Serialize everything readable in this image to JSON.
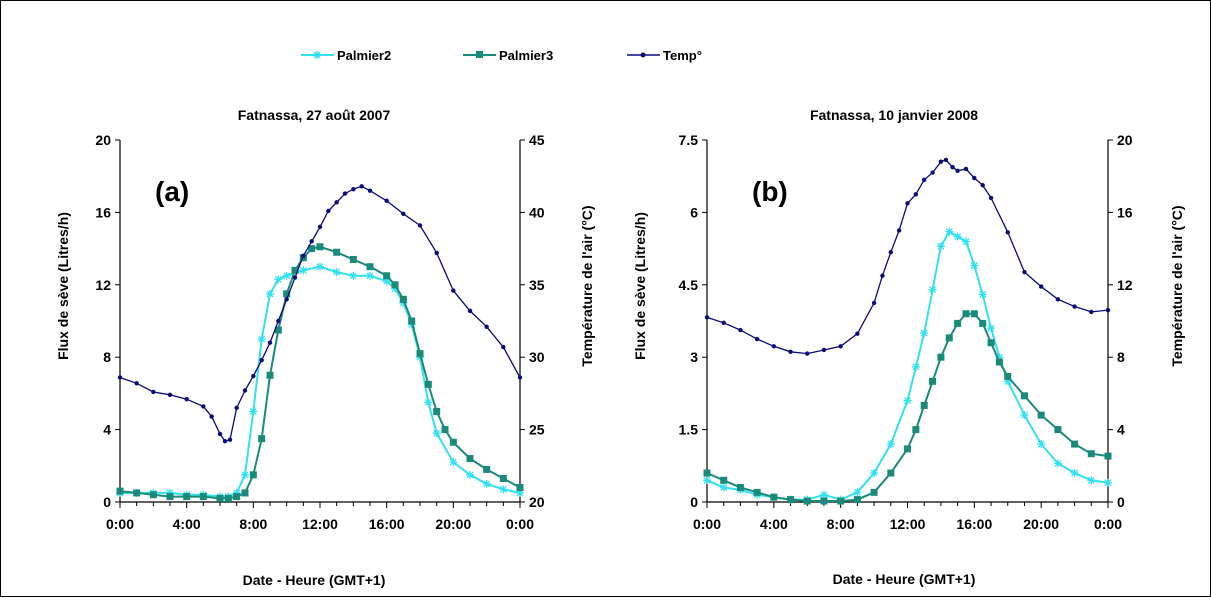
{
  "legend": {
    "items": [
      {
        "label": "Palmier2",
        "color": "#33e0f0",
        "marker": "asterisk"
      },
      {
        "label": "Palmier3",
        "color": "#1a8a7a",
        "marker": "square"
      },
      {
        "label": "Temp°",
        "color": "#0a0a7a",
        "marker": "dot"
      }
    ]
  },
  "chart_data": [
    {
      "type": "line",
      "title": "Fatnassa, 27 août 2007",
      "panel_label": "(a)",
      "xlabel": "Date - Heure (GMT+1)",
      "ylabel": "Flux de sève (Litres/h)",
      "y2label": "Température de l'air (°C)",
      "x_ticks": [
        "0:00",
        "4:00",
        "8:00",
        "12:00",
        "16:00",
        "20:00",
        "0:00"
      ],
      "x_tick_hours": [
        0,
        4,
        8,
        12,
        16,
        20,
        24
      ],
      "xlim": [
        0,
        24
      ],
      "ylim": [
        0,
        20
      ],
      "y_ticks": [
        0,
        4,
        8,
        12,
        16,
        20
      ],
      "y2lim": [
        20,
        45
      ],
      "y2_ticks": [
        20,
        25,
        30,
        35,
        40,
        45
      ],
      "grid": false,
      "legend_position": "top",
      "series": [
        {
          "name": "Palmier2",
          "axis": "left",
          "x": [
            0,
            1,
            2,
            3,
            4,
            5,
            6,
            6.5,
            7,
            7.5,
            8,
            8.5,
            9,
            9.5,
            10,
            11,
            12,
            13,
            14,
            15,
            16,
            16.5,
            17,
            17.5,
            18,
            18.5,
            19,
            20,
            21,
            22,
            23,
            24
          ],
          "y": [
            0.5,
            0.5,
            0.5,
            0.5,
            0.4,
            0.4,
            0.3,
            0.3,
            0.5,
            1.5,
            5,
            9,
            11.5,
            12.3,
            12.5,
            12.8,
            13,
            12.7,
            12.5,
            12.5,
            12.2,
            11.8,
            11,
            9.8,
            8,
            5.5,
            3.8,
            2.2,
            1.5,
            1,
            0.7,
            0.5
          ]
        },
        {
          "name": "Palmier3",
          "axis": "left",
          "x": [
            0,
            1,
            2,
            3,
            4,
            5,
            6,
            6.5,
            7,
            7.5,
            8,
            8.5,
            9,
            9.5,
            10,
            10.5,
            11,
            11.5,
            12,
            13,
            14,
            15,
            16,
            16.5,
            17,
            17.5,
            18,
            18.5,
            19,
            19.5,
            20,
            21,
            22,
            23,
            24
          ],
          "y": [
            0.6,
            0.5,
            0.4,
            0.3,
            0.3,
            0.3,
            0.2,
            0.2,
            0.3,
            0.5,
            1.5,
            3.5,
            7,
            9.5,
            11.5,
            12.8,
            13.5,
            14,
            14.1,
            13.8,
            13.4,
            13,
            12.5,
            12,
            11.2,
            10,
            8.2,
            6.5,
            5,
            4,
            3.3,
            2.4,
            1.8,
            1.3,
            0.8
          ]
        },
        {
          "name": "Temp°",
          "axis": "right",
          "x": [
            0,
            1,
            2,
            3,
            4,
            5,
            5.5,
            6,
            6.3,
            6.6,
            7,
            7.5,
            8,
            8.5,
            9,
            9.5,
            10,
            10.5,
            11,
            11.5,
            12,
            12.5,
            13,
            13.5,
            14,
            14.5,
            15,
            16,
            17,
            18,
            19,
            20,
            21,
            22,
            23,
            24
          ],
          "y": [
            28.6,
            28.2,
            27.6,
            27.4,
            27.1,
            26.6,
            25.9,
            24.7,
            24.2,
            24.3,
            26.5,
            27.7,
            28.7,
            29.8,
            31,
            32.5,
            34,
            35.5,
            37,
            38,
            39,
            40.1,
            40.7,
            41.3,
            41.6,
            41.8,
            41.5,
            40.8,
            39.9,
            39.1,
            37.2,
            34.6,
            33.2,
            32.1,
            30.7,
            28.6
          ]
        }
      ]
    },
    {
      "type": "line",
      "title": "Fatnassa, 10 janvier 2008",
      "panel_label": "(b)",
      "xlabel": "Date - Heure (GMT+1)",
      "ylabel": "Flux de sève (Litres/h)",
      "y2label": "Température de l'air (°C)",
      "x_ticks": [
        "0:00",
        "4:00",
        "8:00",
        "12:00",
        "16:00",
        "20:00",
        "0:00"
      ],
      "x_tick_hours": [
        0,
        4,
        8,
        12,
        16,
        20,
        24
      ],
      "xlim": [
        0,
        24
      ],
      "ylim": [
        0,
        7.5
      ],
      "y_ticks": [
        0,
        1.5,
        3,
        4.5,
        6,
        7.5
      ],
      "y2lim": [
        0,
        20
      ],
      "y2_ticks": [
        0,
        4,
        8,
        12,
        16,
        20
      ],
      "grid": false,
      "legend_position": "top",
      "series": [
        {
          "name": "Palmier2",
          "axis": "left",
          "x": [
            0,
            1,
            2,
            3,
            4,
            5,
            6,
            7,
            8,
            9,
            10,
            11,
            12,
            12.5,
            13,
            13.5,
            14,
            14.5,
            15,
            15.5,
            16,
            16.5,
            17,
            17.5,
            18,
            19,
            20,
            21,
            22,
            23,
            24
          ],
          "y": [
            0.45,
            0.3,
            0.25,
            0.15,
            0.1,
            0.05,
            0.05,
            0.15,
            0.05,
            0.2,
            0.6,
            1.2,
            2.1,
            2.8,
            3.5,
            4.4,
            5.3,
            5.6,
            5.5,
            5.4,
            4.9,
            4.3,
            3.6,
            3,
            2.5,
            1.8,
            1.2,
            0.8,
            0.6,
            0.45,
            0.4
          ]
        },
        {
          "name": "Palmier3",
          "axis": "left",
          "x": [
            0,
            1,
            2,
            3,
            4,
            5,
            6,
            7,
            8,
            9,
            10,
            11,
            12,
            12.5,
            13,
            13.5,
            14,
            14.5,
            15,
            15.5,
            16,
            16.5,
            17,
            17.5,
            18,
            19,
            20,
            21,
            22,
            23,
            24
          ],
          "y": [
            0.6,
            0.45,
            0.3,
            0.2,
            0.1,
            0.05,
            0.02,
            0.02,
            0.02,
            0.05,
            0.2,
            0.6,
            1.1,
            1.5,
            2,
            2.5,
            3,
            3.4,
            3.7,
            3.9,
            3.9,
            3.7,
            3.3,
            2.9,
            2.6,
            2.2,
            1.8,
            1.5,
            1.2,
            1,
            0.95
          ]
        },
        {
          "name": "Temp°",
          "axis": "right",
          "x": [
            0,
            1,
            2,
            3,
            4,
            5,
            6,
            7,
            8,
            9,
            10,
            10.5,
            11,
            11.5,
            12,
            12.5,
            13,
            13.5,
            14,
            14.3,
            14.7,
            15,
            15.5,
            16,
            16.5,
            17,
            18,
            19,
            20,
            21,
            22,
            23,
            24
          ],
          "y": [
            10.2,
            9.9,
            9.5,
            9,
            8.6,
            8.3,
            8.2,
            8.4,
            8.6,
            9.3,
            11,
            12.5,
            13.8,
            15,
            16.5,
            17,
            17.8,
            18.2,
            18.8,
            18.9,
            18.5,
            18.3,
            18.4,
            17.9,
            17.5,
            16.8,
            14.9,
            12.7,
            11.9,
            11.2,
            10.8,
            10.5,
            10.6
          ]
        }
      ]
    }
  ]
}
